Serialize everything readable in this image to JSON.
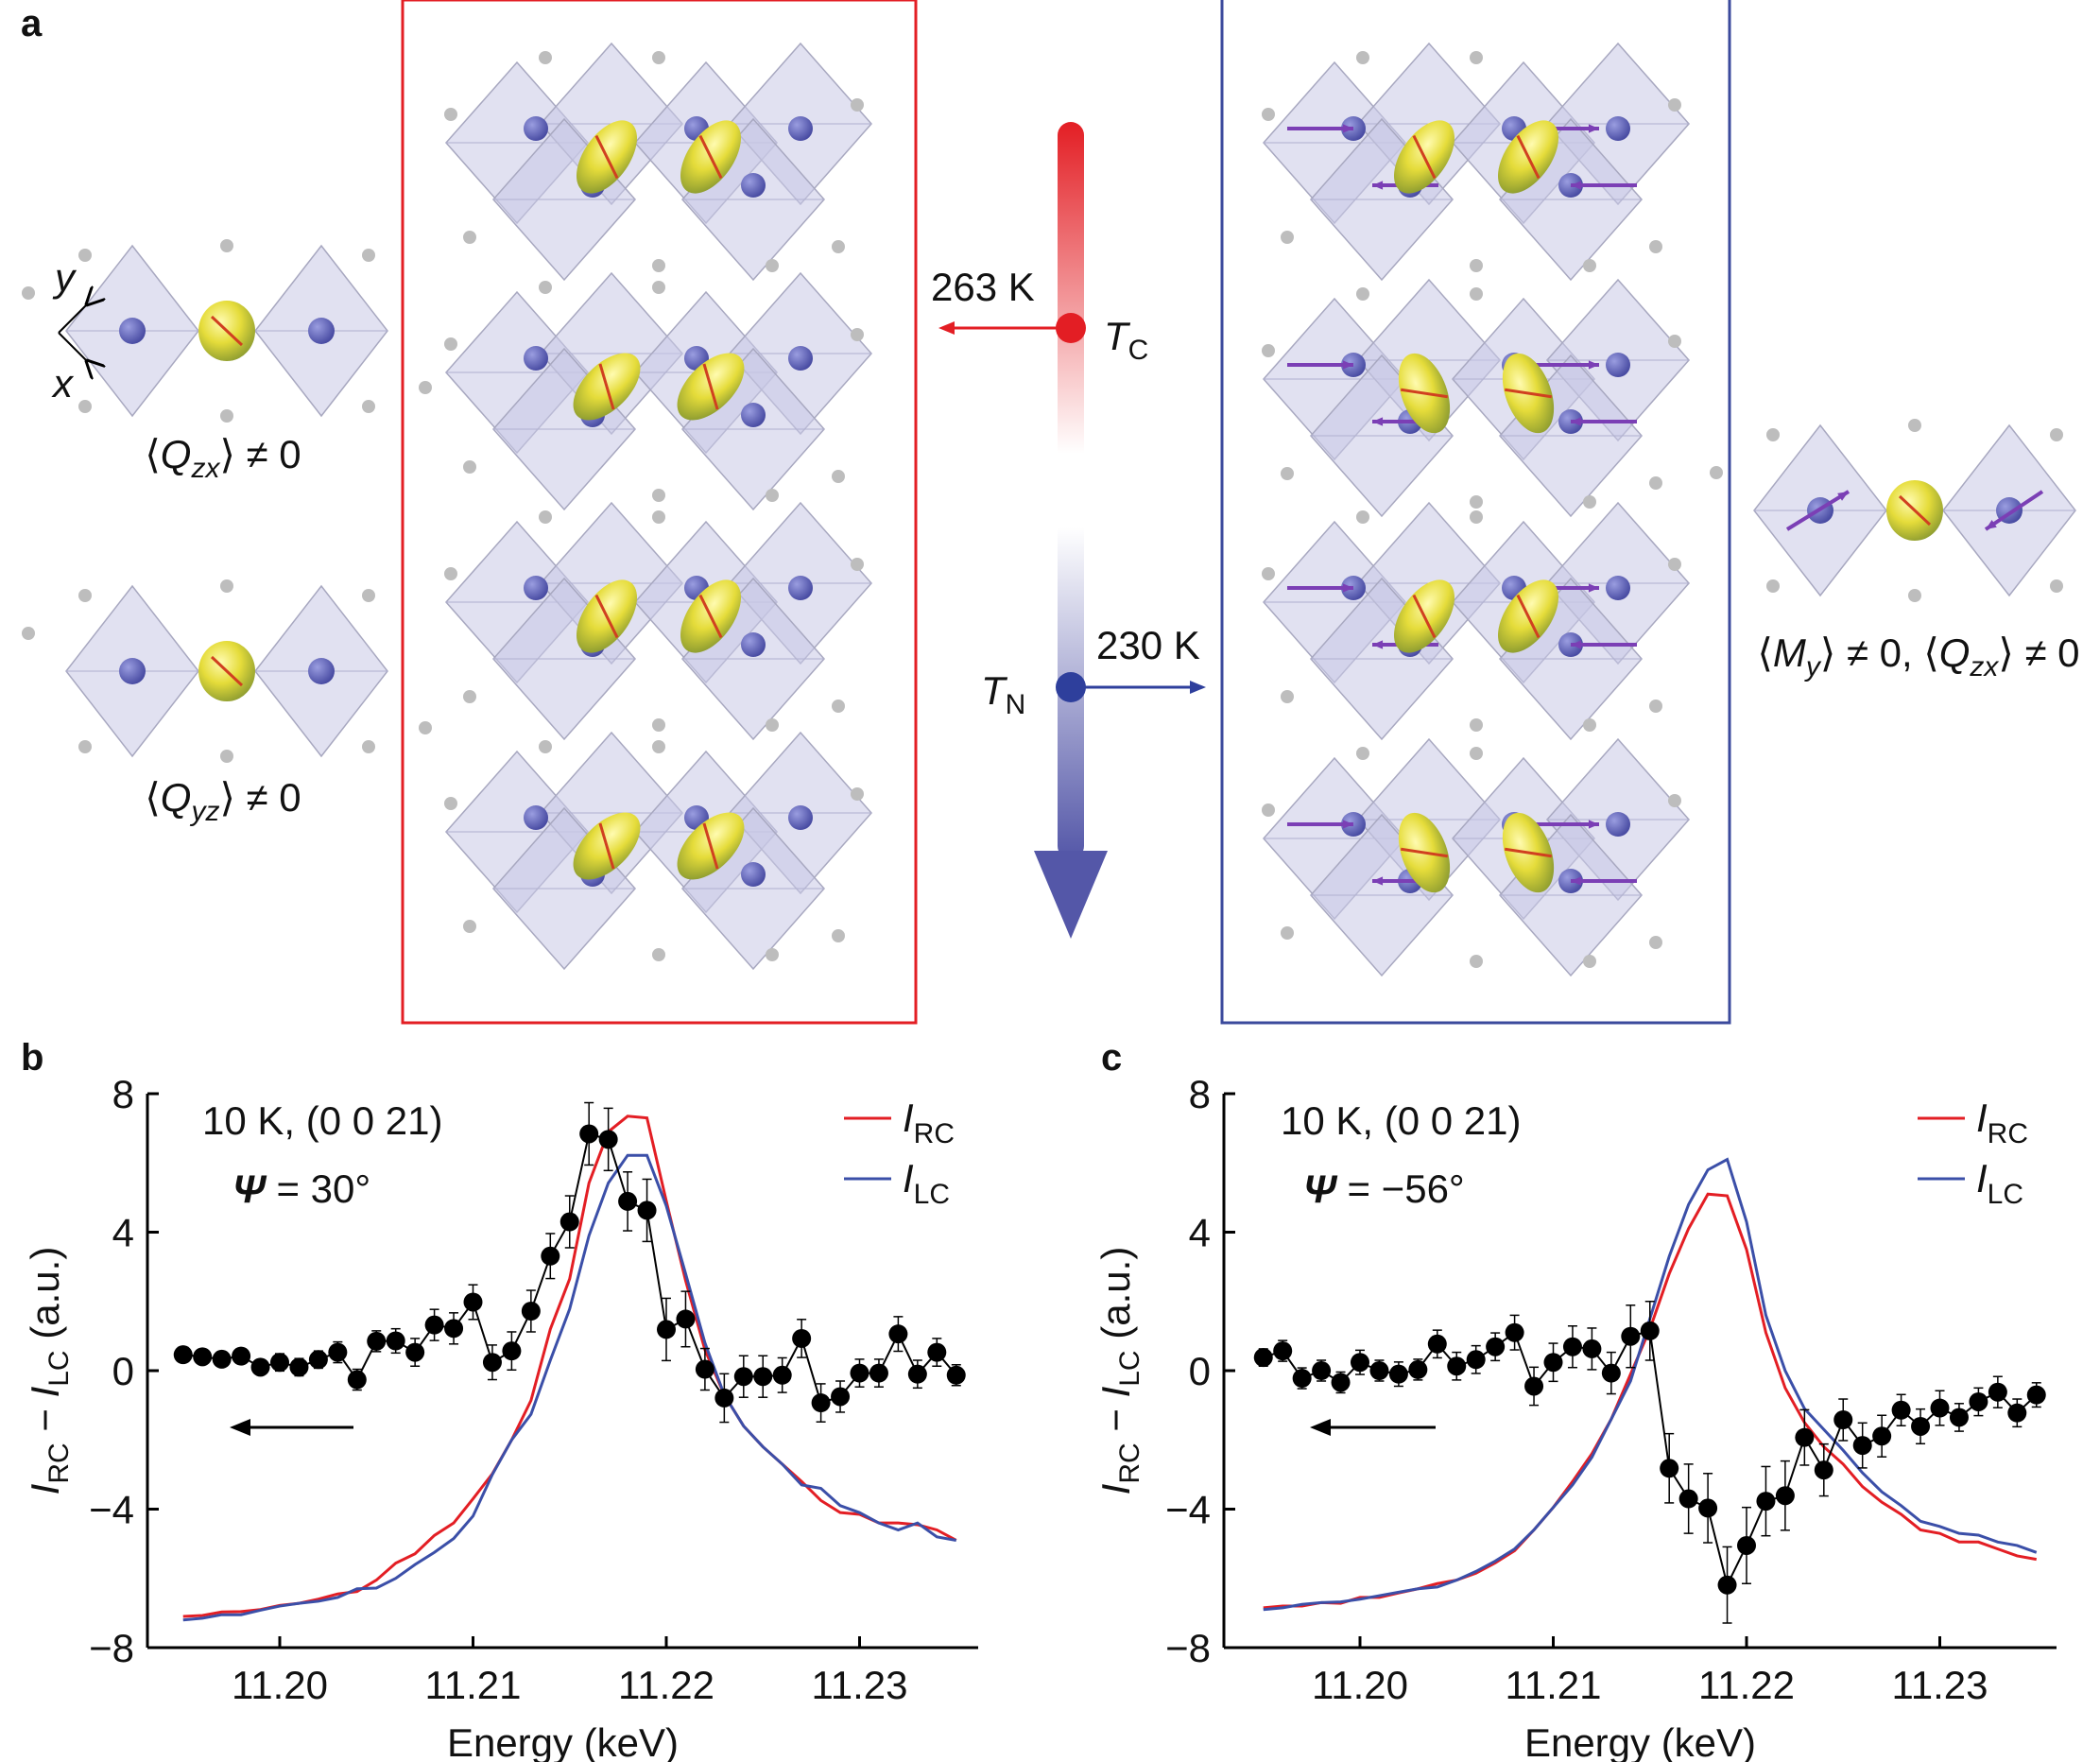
{
  "panel_labels": {
    "a": "a",
    "b": "b",
    "c": "c"
  },
  "diagram": {
    "axis_labels": {
      "y": "y",
      "x": "x"
    },
    "left_top_label": {
      "open": "⟨",
      "q": "Q",
      "sub": "zx",
      "close": "⟩ ≠ 0"
    },
    "left_bottom_label": {
      "open": "⟨",
      "q": "Q",
      "sub": "yz",
      "close": "⟩ ≠ 0"
    },
    "right_label": {
      "p1": "⟨",
      "m": "M",
      "msub": "y",
      "p2": "⟩ ≠ 0, ⟨",
      "q": "Q",
      "qsub": "zx",
      "p3": "⟩ ≠ 0"
    },
    "tc": {
      "temperature": "263 K",
      "symbol": "T",
      "sub": "C"
    },
    "tn": {
      "temperature": "230 K",
      "symbol": "T",
      "sub": "N"
    },
    "colors": {
      "tc": "#e31e24",
      "tn": "#2e3f9c",
      "red_box": "#e31e24",
      "blue_box": "#3b4a9c",
      "octahedron": "#c9c8e6",
      "sphere": "#5c5fb8",
      "orbital": "#e8e040",
      "moment": "#7b3fb5"
    }
  },
  "chart_data": [
    {
      "panel": "b",
      "type": "line",
      "annotation": "10 K, (0 0 21)",
      "psi": {
        "symbol": "Ψ",
        "value": " = 30°"
      },
      "xlabel": "Energy (keV)",
      "ylabel": {
        "i1": "I",
        "s1": "RC",
        "mid": " − ",
        "i2": "I",
        "s2": "LC",
        "unit": " (a.u.)"
      },
      "xlim": [
        11.193,
        11.238
      ],
      "ylim": [
        -8,
        8
      ],
      "xticks": [
        "11.20",
        "11.21",
        "11.22",
        "11.23"
      ],
      "yticks": [
        "8",
        "4",
        "0",
        "−4",
        "−8"
      ],
      "grid": false,
      "legend_position": "top-right",
      "x": [
        11.195,
        11.196,
        11.197,
        11.198,
        11.199,
        11.2,
        11.201,
        11.202,
        11.203,
        11.204,
        11.205,
        11.206,
        11.207,
        11.208,
        11.209,
        11.21,
        11.211,
        11.212,
        11.213,
        11.214,
        11.215,
        11.216,
        11.217,
        11.218,
        11.219,
        11.22,
        11.221,
        11.222,
        11.223,
        11.224,
        11.225,
        11.226,
        11.227,
        11.228,
        11.229,
        11.23,
        11.231,
        11.232,
        11.233,
        11.234,
        11.235
      ],
      "series": [
        {
          "name": "RC",
          "color": "#e31e24",
          "values": [
            -7.1,
            -7.07,
            -6.97,
            -6.96,
            -6.9,
            -6.78,
            -6.72,
            -6.6,
            -6.45,
            -6.38,
            -6.05,
            -5.56,
            -5.29,
            -4.76,
            -4.4,
            -3.7,
            -2.98,
            -2.0,
            -0.86,
            1.2,
            2.65,
            5.42,
            6.9,
            7.35,
            7.3,
            4.9,
            2.6,
            0.6,
            -0.7,
            -1.6,
            -2.2,
            -2.7,
            -3.2,
            -3.75,
            -4.1,
            -4.15,
            -4.4,
            -4.4,
            -4.45,
            -4.6,
            -4.9
          ]
        },
        {
          "name": "LC",
          "color": "#3b4fa8",
          "values": [
            -7.2,
            -7.15,
            -7.05,
            -7.05,
            -6.92,
            -6.8,
            -6.72,
            -6.66,
            -6.55,
            -6.3,
            -6.28,
            -6.0,
            -5.6,
            -5.25,
            -4.85,
            -4.2,
            -3.0,
            -2.0,
            -1.26,
            0.3,
            1.78,
            3.9,
            5.42,
            6.22,
            6.22,
            4.76,
            2.8,
            0.8,
            -0.7,
            -1.6,
            -2.2,
            -2.7,
            -3.3,
            -3.4,
            -3.9,
            -4.1,
            -4.4,
            -4.6,
            -4.4,
            -4.8,
            -4.9
          ]
        },
        {
          "name": "difference",
          "color": "#000000",
          "values": [
            0.46,
            0.4,
            0.33,
            0.42,
            0.1,
            0.24,
            0.1,
            0.32,
            0.53,
            -0.26,
            0.85,
            0.86,
            0.53,
            1.32,
            1.22,
            1.98,
            0.24,
            0.57,
            1.72,
            3.31,
            4.3,
            6.84,
            6.68,
            4.89,
            4.63,
            1.19,
            1.49,
            0.04,
            -0.79,
            -0.17,
            -0.17,
            -0.13,
            0.93,
            -0.93,
            -0.75,
            -0.07,
            -0.07,
            1.06,
            -0.1,
            0.53,
            -0.13
          ],
          "yerr": [
            0.15,
            0.2,
            0.2,
            0.2,
            0.2,
            0.25,
            0.25,
            0.25,
            0.3,
            0.3,
            0.3,
            0.35,
            0.4,
            0.45,
            0.45,
            0.5,
            0.5,
            0.55,
            0.6,
            0.65,
            0.75,
            0.9,
            0.9,
            0.85,
            0.9,
            0.9,
            0.8,
            0.6,
            0.7,
            0.6,
            0.6,
            0.5,
            0.55,
            0.55,
            0.45,
            0.4,
            0.4,
            0.5,
            0.4,
            0.4,
            0.3
          ]
        }
      ],
      "legend": [
        {
          "i": "I",
          "sub": "RC",
          "color": "#e31e24"
        },
        {
          "i": "I",
          "sub": "LC",
          "color": "#3b4fa8"
        }
      ],
      "arrow_direction": "left"
    },
    {
      "panel": "c",
      "type": "line",
      "annotation": "10 K, (0 0 21)",
      "psi": {
        "symbol": "Ψ",
        "value": " = −56°"
      },
      "xlabel": "Energy (keV)",
      "ylabel": {
        "i1": "I",
        "s1": "RC",
        "mid": " − ",
        "i2": "I",
        "s2": "LC",
        "unit": " (a.u.)"
      },
      "xlim": [
        11.193,
        11.238
      ],
      "ylim": [
        -8,
        8
      ],
      "xticks": [
        "11.20",
        "11.21",
        "11.22",
        "11.23"
      ],
      "yticks": [
        "8",
        "4",
        "0",
        "−4",
        "−8"
      ],
      "grid": false,
      "legend_position": "top-right",
      "x": [
        11.195,
        11.196,
        11.197,
        11.198,
        11.199,
        11.2,
        11.201,
        11.202,
        11.203,
        11.204,
        11.205,
        11.206,
        11.207,
        11.208,
        11.209,
        11.21,
        11.211,
        11.212,
        11.213,
        11.214,
        11.215,
        11.216,
        11.217,
        11.218,
        11.219,
        11.22,
        11.221,
        11.222,
        11.223,
        11.224,
        11.225,
        11.226,
        11.227,
        11.228,
        11.229,
        11.23,
        11.231,
        11.232,
        11.233,
        11.234,
        11.235
      ],
      "series": [
        {
          "name": "RC",
          "color": "#e31e24",
          "values": [
            -6.85,
            -6.8,
            -6.8,
            -6.7,
            -6.72,
            -6.55,
            -6.55,
            -6.42,
            -6.3,
            -6.15,
            -6.05,
            -5.85,
            -5.55,
            -5.2,
            -4.6,
            -3.95,
            -3.2,
            -2.4,
            -1.4,
            -0.1,
            1.2,
            2.8,
            4.1,
            5.1,
            5.05,
            3.5,
            1.1,
            -0.5,
            -1.5,
            -2.2,
            -2.7,
            -3.35,
            -3.8,
            -4.15,
            -4.6,
            -4.7,
            -4.95,
            -4.95,
            -5.15,
            -5.35,
            -5.45
          ]
        },
        {
          "name": "LC",
          "color": "#3b4fa8",
          "values": [
            -6.9,
            -6.85,
            -6.75,
            -6.7,
            -6.68,
            -6.6,
            -6.5,
            -6.4,
            -6.3,
            -6.25,
            -6.05,
            -5.8,
            -5.5,
            -5.15,
            -4.6,
            -3.95,
            -3.3,
            -2.5,
            -1.4,
            -0.3,
            1.5,
            3.3,
            4.8,
            5.8,
            6.1,
            4.3,
            1.6,
            0.0,
            -1.1,
            -1.7,
            -2.3,
            -2.95,
            -3.5,
            -3.9,
            -4.35,
            -4.5,
            -4.7,
            -4.75,
            -4.95,
            -5.05,
            -5.25
          ]
        },
        {
          "name": "difference",
          "color": "#000000",
          "values": [
            0.38,
            0.57,
            -0.22,
            0.0,
            -0.34,
            0.24,
            0.0,
            -0.1,
            0.03,
            0.77,
            0.13,
            0.32,
            0.69,
            1.1,
            -0.45,
            0.24,
            0.69,
            0.63,
            -0.07,
            0.99,
            1.15,
            -2.82,
            -3.7,
            -3.97,
            -6.19,
            -5.05,
            -3.77,
            -3.61,
            -1.93,
            -2.87,
            -1.42,
            -2.16,
            -1.89,
            -1.14,
            -1.61,
            -1.08,
            -1.35,
            -0.9,
            -0.62,
            -1.22,
            -0.7
          ],
          "yerr": [
            0.25,
            0.3,
            0.3,
            0.3,
            0.3,
            0.35,
            0.3,
            0.35,
            0.3,
            0.4,
            0.4,
            0.4,
            0.4,
            0.5,
            0.55,
            0.55,
            0.6,
            0.6,
            0.6,
            0.9,
            0.85,
            1.0,
            1.0,
            1.0,
            1.1,
            1.1,
            1.0,
            1.0,
            0.8,
            0.75,
            0.6,
            0.65,
            0.6,
            0.45,
            0.5,
            0.5,
            0.4,
            0.4,
            0.45,
            0.4,
            0.35
          ]
        }
      ],
      "legend": [
        {
          "i": "I",
          "sub": "RC",
          "color": "#e31e24"
        },
        {
          "i": "I",
          "sub": "LC",
          "color": "#3b4fa8"
        }
      ],
      "arrow_direction": "left"
    }
  ]
}
